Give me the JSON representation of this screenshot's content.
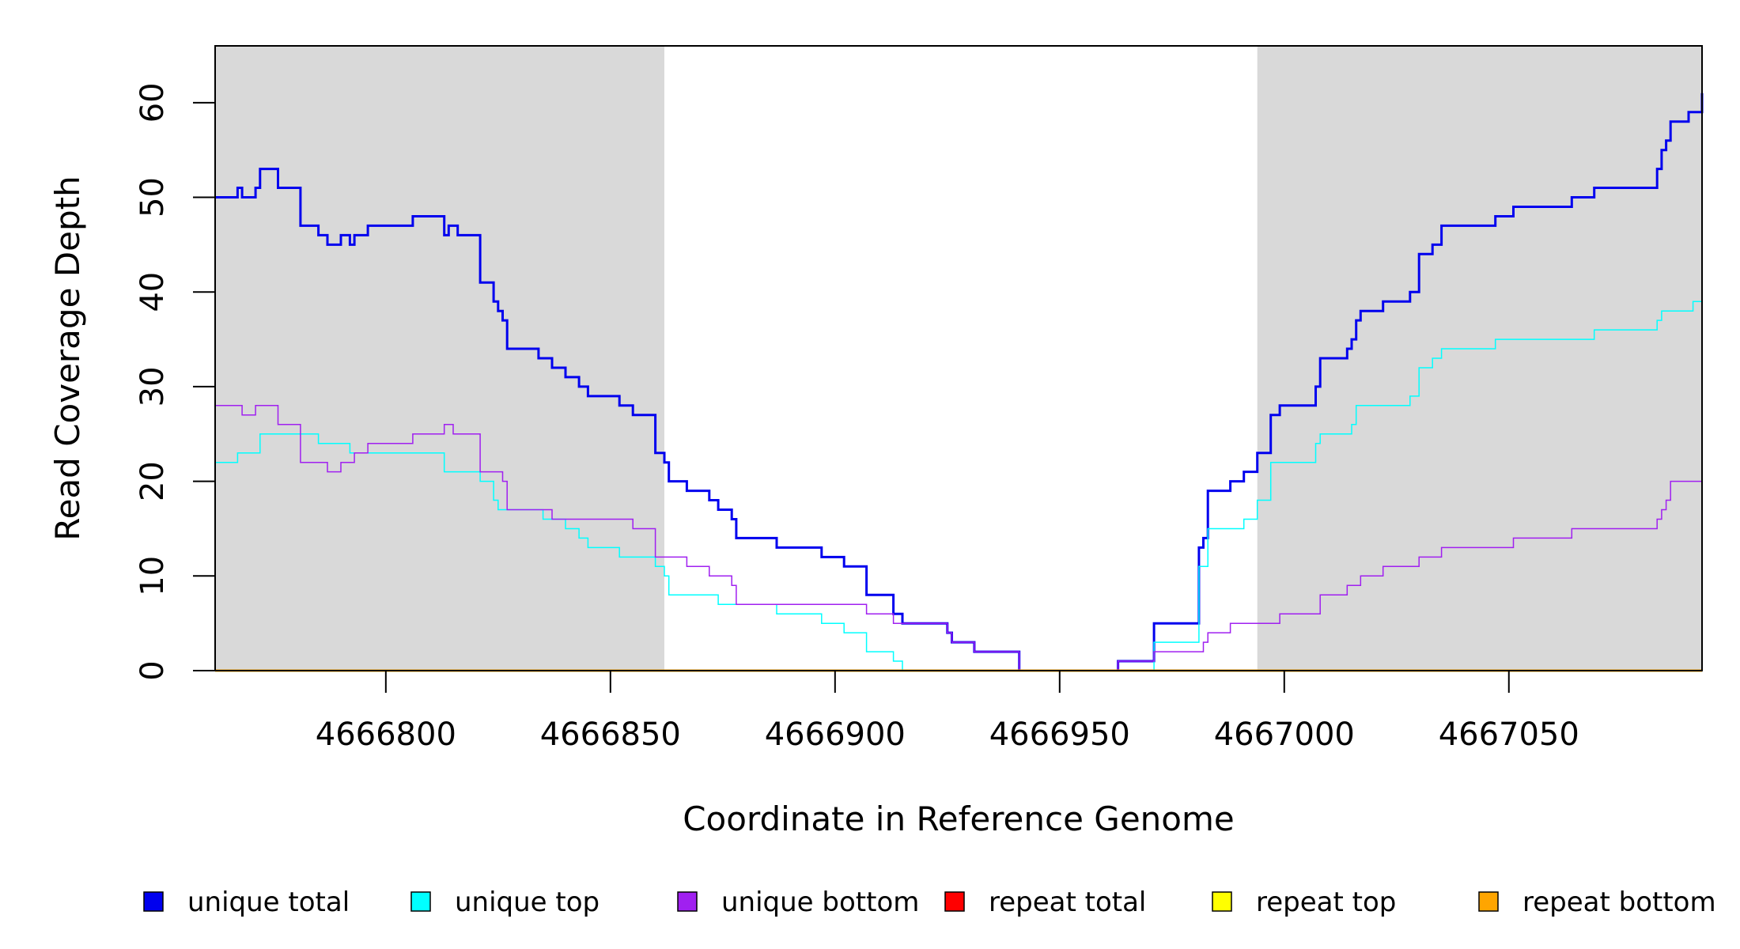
{
  "chart_data": {
    "type": "line",
    "xlabel": "Coordinate in Reference Genome",
    "ylabel": "Read Coverage Depth",
    "xlim": [
      4666762,
      4667093
    ],
    "ylim": [
      0,
      66
    ],
    "x_ticks": [
      4666800,
      4666850,
      4666900,
      4666950,
      4667000,
      4667050
    ],
    "y_ticks": [
      0,
      10,
      20,
      30,
      40,
      50,
      60
    ],
    "shaded_regions": [
      [
        4666762,
        4666862
      ],
      [
        4666994,
        4667093
      ]
    ],
    "shade_color": "#d9d9d9",
    "series": [
      {
        "name": "unique total",
        "color": "#0000ee",
        "line_weight": "thick",
        "points": [
          [
            4666762,
            50
          ],
          [
            4666767,
            51
          ],
          [
            4666768,
            50
          ],
          [
            4666771,
            51
          ],
          [
            4666772,
            53
          ],
          [
            4666776,
            51
          ],
          [
            4666781,
            47
          ],
          [
            4666785,
            46
          ],
          [
            4666787,
            45
          ],
          [
            4666790,
            46
          ],
          [
            4666792,
            45
          ],
          [
            4666793,
            46
          ],
          [
            4666796,
            47
          ],
          [
            4666806,
            48
          ],
          [
            4666813,
            46
          ],
          [
            4666814,
            47
          ],
          [
            4666816,
            46
          ],
          [
            4666821,
            41
          ],
          [
            4666824,
            39
          ],
          [
            4666825,
            38
          ],
          [
            4666826,
            37
          ],
          [
            4666827,
            34
          ],
          [
            4666834,
            33
          ],
          [
            4666837,
            32
          ],
          [
            4666840,
            31
          ],
          [
            4666843,
            30
          ],
          [
            4666845,
            29
          ],
          [
            4666852,
            28
          ],
          [
            4666855,
            27
          ],
          [
            4666860,
            23
          ],
          [
            4666862,
            22
          ],
          [
            4666863,
            20
          ],
          [
            4666867,
            19
          ],
          [
            4666872,
            18
          ],
          [
            4666874,
            17
          ],
          [
            4666877,
            16
          ],
          [
            4666878,
            14
          ],
          [
            4666887,
            13
          ],
          [
            4666897,
            12
          ],
          [
            4666902,
            11
          ],
          [
            4666907,
            8
          ],
          [
            4666913,
            6
          ],
          [
            4666915,
            5
          ],
          [
            4666925,
            4
          ],
          [
            4666926,
            3
          ],
          [
            4666931,
            2
          ],
          [
            4666941,
            0
          ],
          [
            4666963,
            1
          ],
          [
            4666971,
            5
          ],
          [
            4666981,
            13
          ],
          [
            4666982,
            14
          ],
          [
            4666983,
            19
          ],
          [
            4666988,
            20
          ],
          [
            4666991,
            21
          ],
          [
            4666994,
            23
          ],
          [
            4666997,
            27
          ],
          [
            4666999,
            28
          ],
          [
            4667007,
            30
          ],
          [
            4667008,
            33
          ],
          [
            4667014,
            34
          ],
          [
            4667015,
            35
          ],
          [
            4667016,
            37
          ],
          [
            4667017,
            38
          ],
          [
            4667022,
            39
          ],
          [
            4667028,
            40
          ],
          [
            4667030,
            44
          ],
          [
            4667033,
            45
          ],
          [
            4667035,
            47
          ],
          [
            4667047,
            48
          ],
          [
            4667051,
            49
          ],
          [
            4667064,
            50
          ],
          [
            4667069,
            51
          ],
          [
            4667083,
            53
          ],
          [
            4667084,
            55
          ],
          [
            4667085,
            56
          ],
          [
            4667086,
            58
          ],
          [
            4667090,
            59
          ],
          [
            4667093,
            61
          ]
        ]
      },
      {
        "name": "unique top",
        "color": "#00ffff",
        "line_weight": "thin",
        "points": [
          [
            4666762,
            22
          ],
          [
            4666767,
            23
          ],
          [
            4666772,
            25
          ],
          [
            4666785,
            24
          ],
          [
            4666792,
            23
          ],
          [
            4666813,
            21
          ],
          [
            4666821,
            20
          ],
          [
            4666824,
            18
          ],
          [
            4666825,
            17
          ],
          [
            4666835,
            16
          ],
          [
            4666840,
            15
          ],
          [
            4666843,
            14
          ],
          [
            4666845,
            13
          ],
          [
            4666852,
            12
          ],
          [
            4666860,
            11
          ],
          [
            4666862,
            10
          ],
          [
            4666863,
            8
          ],
          [
            4666874,
            7
          ],
          [
            4666887,
            6
          ],
          [
            4666897,
            5
          ],
          [
            4666902,
            4
          ],
          [
            4666907,
            2
          ],
          [
            4666913,
            1
          ],
          [
            4666915,
            0
          ],
          [
            4666971,
            3
          ],
          [
            4666981,
            11
          ],
          [
            4666983,
            15
          ],
          [
            4666991,
            16
          ],
          [
            4666994,
            18
          ],
          [
            4666997,
            22
          ],
          [
            4667007,
            24
          ],
          [
            4667008,
            25
          ],
          [
            4667015,
            26
          ],
          [
            4667016,
            28
          ],
          [
            4667028,
            29
          ],
          [
            4667030,
            32
          ],
          [
            4667033,
            33
          ],
          [
            4667035,
            34
          ],
          [
            4667047,
            35
          ],
          [
            4667069,
            36
          ],
          [
            4667083,
            37
          ],
          [
            4667084,
            38
          ],
          [
            4667091,
            39
          ]
        ]
      },
      {
        "name": "unique bottom",
        "color": "#a020f0",
        "line_weight": "thin",
        "points": [
          [
            4666762,
            28
          ],
          [
            4666768,
            27
          ],
          [
            4666771,
            28
          ],
          [
            4666776,
            26
          ],
          [
            4666781,
            22
          ],
          [
            4666787,
            21
          ],
          [
            4666790,
            22
          ],
          [
            4666793,
            23
          ],
          [
            4666796,
            24
          ],
          [
            4666806,
            25
          ],
          [
            4666813,
            26
          ],
          [
            4666815,
            25
          ],
          [
            4666821,
            21
          ],
          [
            4666826,
            20
          ],
          [
            4666827,
            17
          ],
          [
            4666837,
            16
          ],
          [
            4666855,
            15
          ],
          [
            4666860,
            12
          ],
          [
            4666867,
            11
          ],
          [
            4666872,
            10
          ],
          [
            4666877,
            9
          ],
          [
            4666878,
            7
          ],
          [
            4666907,
            6
          ],
          [
            4666913,
            5
          ],
          [
            4666925,
            4
          ],
          [
            4666926,
            3
          ],
          [
            4666931,
            2
          ],
          [
            4666941,
            0
          ],
          [
            4666963,
            1
          ],
          [
            4666971,
            2
          ],
          [
            4666982,
            3
          ],
          [
            4666983,
            4
          ],
          [
            4666988,
            5
          ],
          [
            4666999,
            6
          ],
          [
            4667008,
            8
          ],
          [
            4667014,
            9
          ],
          [
            4667017,
            10
          ],
          [
            4667022,
            11
          ],
          [
            4667030,
            12
          ],
          [
            4667035,
            13
          ],
          [
            4667051,
            14
          ],
          [
            4667064,
            15
          ],
          [
            4667083,
            16
          ],
          [
            4667084,
            17
          ],
          [
            4667085,
            18
          ],
          [
            4667086,
            20
          ],
          [
            4667093,
            22
          ]
        ]
      },
      {
        "name": "repeat total",
        "color": "#ff0000",
        "line_weight": "thin",
        "points": [
          [
            4666762,
            0
          ],
          [
            4667093,
            0
          ]
        ]
      },
      {
        "name": "repeat top",
        "color": "#ffff00",
        "line_weight": "thin",
        "points": [
          [
            4666762,
            0
          ],
          [
            4667093,
            0
          ]
        ]
      },
      {
        "name": "repeat bottom",
        "color": "#ffa500",
        "line_weight": "thick",
        "points": [
          [
            4666762,
            0
          ],
          [
            4667093,
            0
          ]
        ]
      }
    ]
  }
}
